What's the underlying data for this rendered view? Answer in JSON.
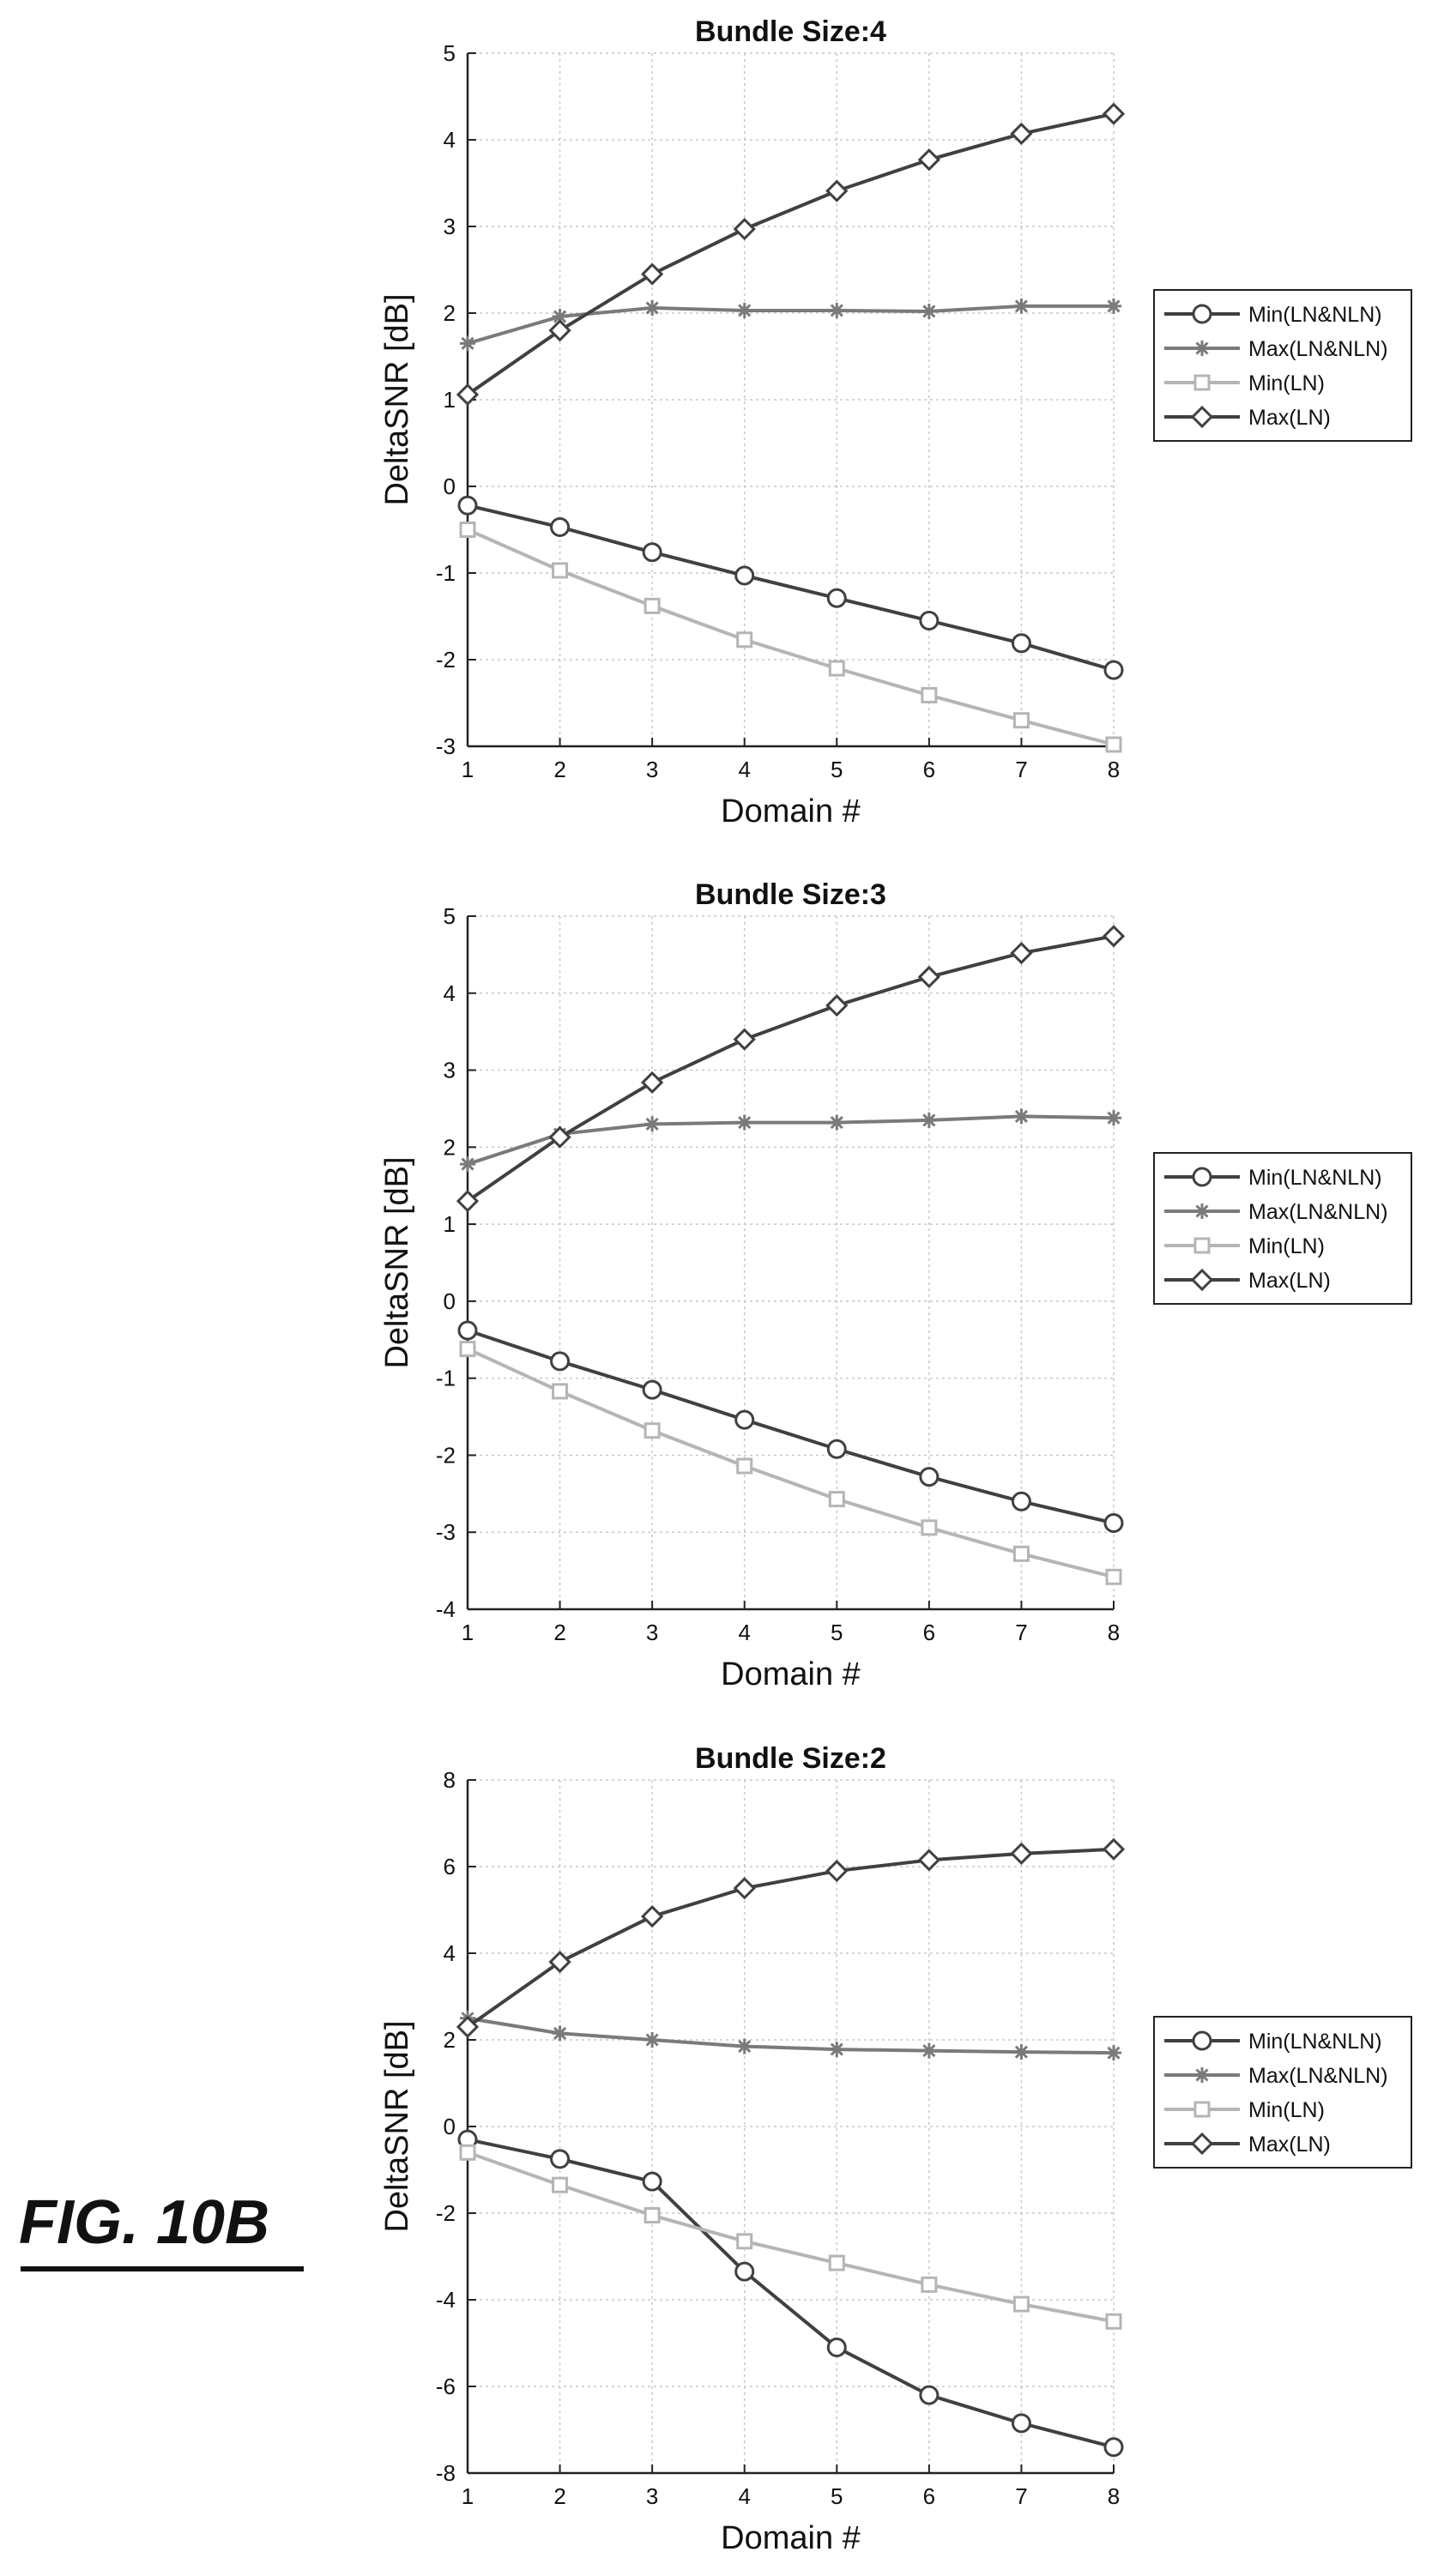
{
  "figure_label": "FIG. 10B",
  "colors": {
    "dark_series": "#404040",
    "medium_series": "#7a7a7a",
    "light_series": "#b5b5b5",
    "grid": "#c8c8c8",
    "axis": "#222222"
  },
  "chart_data": [
    {
      "type": "line",
      "title": "Bundle Size:4",
      "xlabel": "Domain #",
      "ylabel": "DeltaSNR [dB]",
      "x": [
        1,
        2,
        3,
        4,
        5,
        6,
        7,
        8
      ],
      "xlim": [
        1,
        8
      ],
      "ylim": [
        -3,
        5
      ],
      "yticks": [
        5,
        4,
        3,
        2,
        1,
        0,
        -1,
        -2,
        -3
      ],
      "grid": true,
      "legend_position": "right",
      "series": [
        {
          "name": "Min(LN&NLN)",
          "marker": "circle",
          "color": "#404040",
          "values": [
            -0.22,
            -0.47,
            -0.76,
            -1.03,
            -1.29,
            -1.55,
            -1.81,
            -2.12
          ]
        },
        {
          "name": "Max(LN&NLN)",
          "marker": "asterisk",
          "color": "#7a7a7a",
          "values": [
            1.65,
            1.96,
            2.06,
            2.03,
            2.03,
            2.02,
            2.08,
            2.08
          ]
        },
        {
          "name": "Min(LN)",
          "marker": "square",
          "color": "#b5b5b5",
          "values": [
            -0.5,
            -0.97,
            -1.38,
            -1.77,
            -2.1,
            -2.41,
            -2.7,
            -2.98
          ]
        },
        {
          "name": "Max(LN)",
          "marker": "diamond",
          "color": "#404040",
          "values": [
            1.06,
            1.8,
            2.45,
            2.97,
            3.41,
            3.77,
            4.07,
            4.3
          ]
        }
      ]
    },
    {
      "type": "line",
      "title": "Bundle Size:3",
      "xlabel": "Domain #",
      "ylabel": "DeltaSNR [dB]",
      "x": [
        1,
        2,
        3,
        4,
        5,
        6,
        7,
        8
      ],
      "xlim": [
        1,
        8
      ],
      "ylim": [
        -4,
        5
      ],
      "yticks": [
        5,
        4,
        3,
        2,
        1,
        0,
        -1,
        -2,
        -3,
        -4
      ],
      "grid": true,
      "legend_position": "right",
      "series": [
        {
          "name": "Min(LN&NLN)",
          "marker": "circle",
          "color": "#404040",
          "values": [
            -0.38,
            -0.78,
            -1.15,
            -1.54,
            -1.92,
            -2.28,
            -2.6,
            -2.88
          ]
        },
        {
          "name": "Max(LN&NLN)",
          "marker": "asterisk",
          "color": "#7a7a7a",
          "values": [
            1.78,
            2.17,
            2.3,
            2.32,
            2.32,
            2.35,
            2.4,
            2.38
          ]
        },
        {
          "name": "Min(LN)",
          "marker": "square",
          "color": "#b5b5b5",
          "values": [
            -0.62,
            -1.17,
            -1.68,
            -2.14,
            -2.57,
            -2.94,
            -3.28,
            -3.58
          ]
        },
        {
          "name": "Max(LN)",
          "marker": "diamond",
          "color": "#404040",
          "values": [
            1.3,
            2.13,
            2.84,
            3.4,
            3.84,
            4.21,
            4.52,
            4.74
          ]
        }
      ]
    },
    {
      "type": "line",
      "title": "Bundle Size:2",
      "xlabel": "Domain #",
      "ylabel": "DeltaSNR [dB]",
      "x": [
        1,
        2,
        3,
        4,
        5,
        6,
        7,
        8
      ],
      "xlim": [
        1,
        8
      ],
      "ylim": [
        -8,
        8
      ],
      "yticks": [
        8,
        6,
        4,
        2,
        0,
        -2,
        -4,
        -6,
        -8
      ],
      "grid": true,
      "legend_position": "right",
      "series": [
        {
          "name": "Min(LN&NLN)",
          "marker": "circle",
          "color": "#404040",
          "values": [
            -0.3,
            -0.75,
            -1.27,
            -3.35,
            -5.1,
            -6.2,
            -6.85,
            -7.4
          ]
        },
        {
          "name": "Max(LN&NLN)",
          "marker": "asterisk",
          "color": "#7a7a7a",
          "values": [
            2.5,
            2.15,
            2.0,
            1.85,
            1.78,
            1.75,
            1.72,
            1.7
          ]
        },
        {
          "name": "Min(LN)",
          "marker": "square",
          "color": "#b5b5b5",
          "values": [
            -0.6,
            -1.35,
            -2.05,
            -2.65,
            -3.15,
            -3.65,
            -4.1,
            -4.5
          ]
        },
        {
          "name": "Max(LN)",
          "marker": "diamond",
          "color": "#404040",
          "values": [
            2.3,
            3.8,
            4.85,
            5.5,
            5.9,
            6.15,
            6.3,
            6.4
          ]
        }
      ]
    }
  ]
}
